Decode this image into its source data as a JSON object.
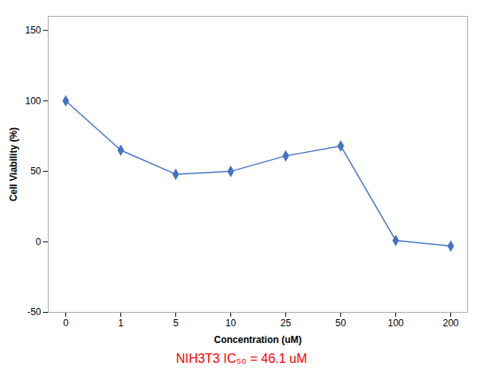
{
  "chart_data": {
    "type": "line",
    "categories": [
      "0",
      "1",
      "5",
      "10",
      "25",
      "50",
      "100",
      "200"
    ],
    "values": [
      100,
      65,
      48,
      50,
      61,
      68,
      1,
      -3
    ],
    "color": "#4472C4",
    "marker": "diamond",
    "xlabel": "Concentration (uM)",
    "ylabel": "Cell Viability (%)",
    "ylim": [
      -50,
      160
    ],
    "yticks": [
      -50,
      0,
      50,
      100,
      150
    ],
    "grid": false,
    "annotations": [
      {
        "text": "NIH3T3 IC₅₀ = 46.1 uM",
        "color": "#FF0000"
      }
    ]
  }
}
